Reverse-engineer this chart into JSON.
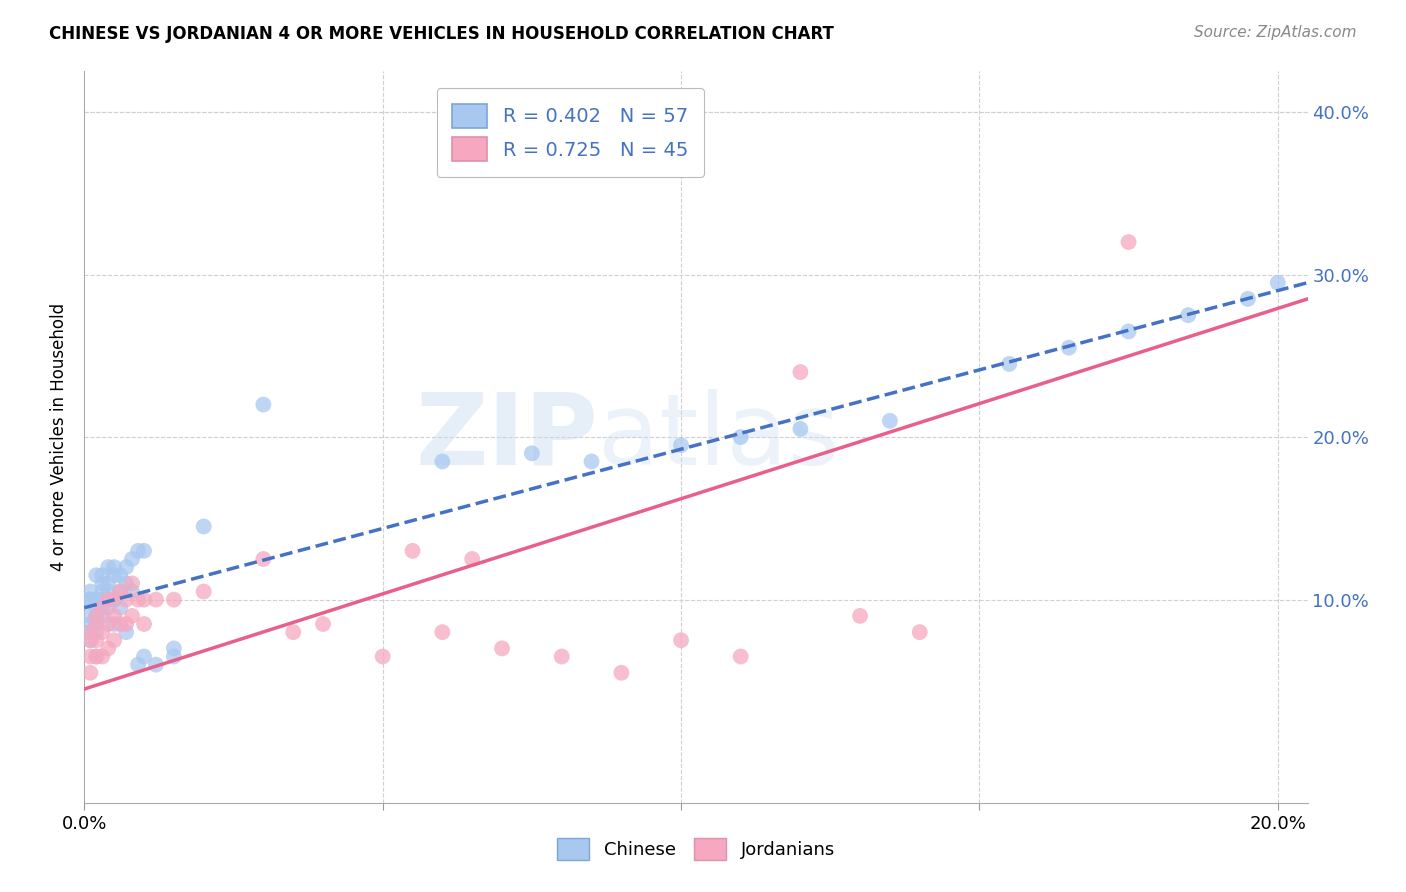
{
  "title": "CHINESE VS JORDANIAN 4 OR MORE VEHICLES IN HOUSEHOLD CORRELATION CHART",
  "source": "Source: ZipAtlas.com",
  "ylabel": "4 or more Vehicles in Household",
  "watermark_line1": "ZIP",
  "watermark_line2": "atlas",
  "legend_chinese_R": "R = 0.402",
  "legend_chinese_N": "N = 57",
  "legend_jordanian_R": "R = 0.725",
  "legend_jordanian_N": "N = 45",
  "chinese_color": "#a8c8f0",
  "jordanian_color": "#f5a8c0",
  "chinese_line_color": "#4472c4",
  "jordanian_line_color": "#e8608a",
  "background_color": "#ffffff",
  "grid_color": "#d0d0d0",
  "xlim": [
    0.0,
    0.205
  ],
  "ylim": [
    -0.025,
    0.425
  ],
  "chinese_x": [
    0.001,
    0.001,
    0.001,
    0.001,
    0.001,
    0.001,
    0.001,
    0.002,
    0.002,
    0.002,
    0.002,
    0.002,
    0.002,
    0.002,
    0.003,
    0.003,
    0.003,
    0.003,
    0.003,
    0.004,
    0.004,
    0.004,
    0.004,
    0.005,
    0.005,
    0.005,
    0.005,
    0.006,
    0.006,
    0.006,
    0.007,
    0.007,
    0.007,
    0.008,
    0.008,
    0.009,
    0.009,
    0.01,
    0.01,
    0.012,
    0.015,
    0.015,
    0.02,
    0.03,
    0.06,
    0.075,
    0.085,
    0.1,
    0.11,
    0.12,
    0.135,
    0.155,
    0.165,
    0.175,
    0.185,
    0.195,
    0.2
  ],
  "chinese_y": [
    0.09,
    0.1,
    0.105,
    0.1,
    0.085,
    0.08,
    0.075,
    0.115,
    0.1,
    0.095,
    0.09,
    0.085,
    0.08,
    0.065,
    0.115,
    0.11,
    0.105,
    0.1,
    0.09,
    0.12,
    0.11,
    0.105,
    0.095,
    0.12,
    0.115,
    0.1,
    0.085,
    0.115,
    0.105,
    0.095,
    0.12,
    0.11,
    0.08,
    0.125,
    0.105,
    0.13,
    0.06,
    0.13,
    0.065,
    0.06,
    0.07,
    0.065,
    0.145,
    0.22,
    0.185,
    0.19,
    0.185,
    0.195,
    0.2,
    0.205,
    0.21,
    0.245,
    0.255,
    0.265,
    0.275,
    0.285,
    0.295
  ],
  "jordanian_x": [
    0.001,
    0.001,
    0.001,
    0.001,
    0.002,
    0.002,
    0.002,
    0.002,
    0.003,
    0.003,
    0.003,
    0.004,
    0.004,
    0.004,
    0.005,
    0.005,
    0.005,
    0.006,
    0.006,
    0.007,
    0.007,
    0.008,
    0.008,
    0.009,
    0.01,
    0.01,
    0.012,
    0.015,
    0.02,
    0.03,
    0.035,
    0.04,
    0.05,
    0.055,
    0.06,
    0.065,
    0.07,
    0.08,
    0.09,
    0.1,
    0.11,
    0.12,
    0.13,
    0.14,
    0.175
  ],
  "jordanian_y": [
    0.08,
    0.075,
    0.065,
    0.055,
    0.09,
    0.085,
    0.075,
    0.065,
    0.095,
    0.08,
    0.065,
    0.1,
    0.085,
    0.07,
    0.1,
    0.09,
    0.075,
    0.105,
    0.085,
    0.1,
    0.085,
    0.11,
    0.09,
    0.1,
    0.1,
    0.085,
    0.1,
    0.1,
    0.105,
    0.125,
    0.08,
    0.085,
    0.065,
    0.13,
    0.08,
    0.125,
    0.07,
    0.065,
    0.055,
    0.075,
    0.065,
    0.24,
    0.09,
    0.08,
    0.32
  ],
  "chinese_trendline_x": [
    0.0,
    0.205
  ],
  "chinese_trendline_y": [
    0.095,
    0.295
  ],
  "jordanian_trendline_x": [
    0.0,
    0.205
  ],
  "jordanian_trendline_y": [
    0.045,
    0.285
  ]
}
